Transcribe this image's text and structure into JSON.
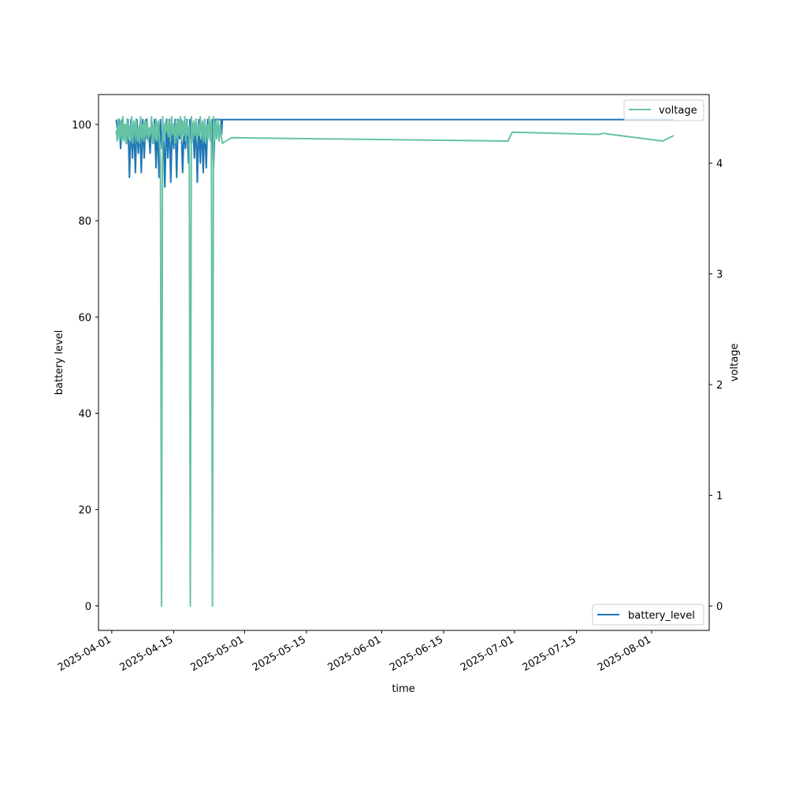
{
  "chart_data": {
    "type": "line",
    "xlabel": "time",
    "ylabel": "battery level",
    "y2label": "voltage",
    "x_ticks": [
      "2025-04-01",
      "2025-04-15",
      "2025-05-01",
      "2025-05-15",
      "2025-06-01",
      "2025-06-15",
      "2025-07-01",
      "2025-07-15",
      "2025-08-01"
    ],
    "xlim": [
      "2025-03-29",
      "2025-08-14"
    ],
    "ylim": [
      -5.1,
      106.2
    ],
    "yticks": [
      0,
      20,
      40,
      60,
      80,
      100
    ],
    "y2lim": [
      -0.22,
      4.62
    ],
    "y2ticks": [
      0,
      1,
      2,
      3,
      4
    ],
    "grid": false,
    "series": [
      {
        "name": "battery_level",
        "axis": "left",
        "color": "#1f77b4",
        "legend_location": "lower-right",
        "x": [
          "2025-04-02T00:00",
          "2025-04-02T08:00",
          "2025-04-02T16:00",
          "2025-04-03T00:00",
          "2025-04-03T08:00",
          "2025-04-03T16:00",
          "2025-04-04T00:00",
          "2025-04-04T08:00",
          "2025-04-04T16:00",
          "2025-04-05T00:00",
          "2025-04-05T08:00",
          "2025-04-05T16:00",
          "2025-04-06T00:00",
          "2025-04-06T08:00",
          "2025-04-06T16:00",
          "2025-04-07T00:00",
          "2025-04-07T08:00",
          "2025-04-07T16:00",
          "2025-04-08T00:00",
          "2025-04-08T08:00",
          "2025-04-08T16:00",
          "2025-04-09T00:00",
          "2025-04-09T08:00",
          "2025-04-09T16:00",
          "2025-04-10T00:00",
          "2025-04-10T08:00",
          "2025-04-10T16:00",
          "2025-04-11T00:00",
          "2025-04-11T08:00",
          "2025-04-11T16:00",
          "2025-04-12T00:00",
          "2025-04-12T08:00",
          "2025-04-12T16:00",
          "2025-04-13T00:00",
          "2025-04-13T08:00",
          "2025-04-13T16:00",
          "2025-04-14T00:00",
          "2025-04-14T08:00",
          "2025-04-14T16:00",
          "2025-04-15T00:00",
          "2025-04-15T08:00",
          "2025-04-15T16:00",
          "2025-04-16T00:00",
          "2025-04-16T08:00",
          "2025-04-16T16:00",
          "2025-04-17T00:00",
          "2025-04-17T08:00",
          "2025-04-17T16:00",
          "2025-04-18T00:00",
          "2025-04-18T08:00",
          "2025-04-18T16:00",
          "2025-04-19T00:00",
          "2025-04-19T08:00",
          "2025-04-19T16:00",
          "2025-04-20T00:00",
          "2025-04-20T08:00",
          "2025-04-20T16:00",
          "2025-04-21T00:00",
          "2025-04-21T08:00",
          "2025-04-21T16:00",
          "2025-04-22T00:00",
          "2025-04-22T08:00",
          "2025-04-22T16:00",
          "2025-04-23T00:00",
          "2025-04-23T08:00",
          "2025-04-23T16:00",
          "2025-04-24T00:00",
          "2025-04-24T08:00",
          "2025-04-24T16:00",
          "2025-04-25T00:00",
          "2025-04-25T08:00",
          "2025-04-25T16:00",
          "2025-04-25T20:00",
          "2025-04-26T00:00",
          "2025-08-06T00:00"
        ],
        "values": [
          101,
          99,
          101,
          95,
          101,
          97,
          100,
          96,
          101,
          89,
          101,
          93,
          100,
          90,
          101,
          94,
          100,
          90,
          101,
          93,
          101,
          97,
          99,
          94,
          101,
          96,
          101,
          91,
          100,
          89,
          101,
          95,
          99,
          87,
          101,
          93,
          101,
          88,
          100,
          95,
          101,
          89,
          101,
          97,
          101,
          90,
          99,
          95,
          101,
          92,
          101,
          96,
          100,
          93,
          101,
          88,
          101,
          92,
          100,
          90,
          101,
          91,
          101,
          101,
          98,
          101,
          91,
          101,
          101,
          101,
          101,
          101,
          98,
          101,
          101
        ]
      },
      {
        "name": "voltage",
        "axis": "right",
        "color": "#66c2a5",
        "legend_location": "upper-right",
        "x": [
          "2025-04-02T00:00",
          "2025-04-02T06:00",
          "2025-04-02T12:00",
          "2025-04-02T18:00",
          "2025-04-03T00:00",
          "2025-04-03T06:00",
          "2025-04-03T12:00",
          "2025-04-03T18:00",
          "2025-04-04T00:00",
          "2025-04-04T06:00",
          "2025-04-04T12:00",
          "2025-04-04T18:00",
          "2025-04-05T00:00",
          "2025-04-05T06:00",
          "2025-04-05T12:00",
          "2025-04-05T18:00",
          "2025-04-06T00:00",
          "2025-04-06T06:00",
          "2025-04-06T12:00",
          "2025-04-06T18:00",
          "2025-04-07T00:00",
          "2025-04-07T06:00",
          "2025-04-07T12:00",
          "2025-04-07T18:00",
          "2025-04-08T00:00",
          "2025-04-08T06:00",
          "2025-04-08T12:00",
          "2025-04-08T18:00",
          "2025-04-09T00:00",
          "2025-04-09T06:00",
          "2025-04-09T12:00",
          "2025-04-09T18:00",
          "2025-04-10T00:00",
          "2025-04-10T06:00",
          "2025-04-10T12:00",
          "2025-04-10T18:00",
          "2025-04-11T00:00",
          "2025-04-11T06:00",
          "2025-04-11T12:00",
          "2025-04-11T18:00",
          "2025-04-12T00:00",
          "2025-04-12T06:00",
          "2025-04-12T12:00",
          "2025-04-12T18:00",
          "2025-04-13T00:00",
          "2025-04-13T06:00",
          "2025-04-13T12:00",
          "2025-04-13T18:00",
          "2025-04-14T00:00",
          "2025-04-14T06:00",
          "2025-04-14T12:00",
          "2025-04-14T18:00",
          "2025-04-15T00:00",
          "2025-04-15T06:00",
          "2025-04-15T12:00",
          "2025-04-15T18:00",
          "2025-04-16T00:00",
          "2025-04-16T06:00",
          "2025-04-16T12:00",
          "2025-04-16T18:00",
          "2025-04-17T00:00",
          "2025-04-17T06:00",
          "2025-04-17T12:00",
          "2025-04-17T18:00",
          "2025-04-18T00:00",
          "2025-04-18T06:00",
          "2025-04-18T12:00",
          "2025-04-18T18:00",
          "2025-04-19T00:00",
          "2025-04-19T06:00",
          "2025-04-19T12:00",
          "2025-04-19T18:00",
          "2025-04-20T00:00",
          "2025-04-20T06:00",
          "2025-04-20T12:00",
          "2025-04-20T18:00",
          "2025-04-21T00:00",
          "2025-04-21T06:00",
          "2025-04-21T12:00",
          "2025-04-21T18:00",
          "2025-04-22T00:00",
          "2025-04-22T06:00",
          "2025-04-22T12:00",
          "2025-04-22T18:00",
          "2025-04-23T00:00",
          "2025-04-23T06:00",
          "2025-04-23T12:00",
          "2025-04-23T18:00",
          "2025-04-24T00:00",
          "2025-04-24T06:00",
          "2025-04-24T12:00",
          "2025-04-24T18:00",
          "2025-04-25T00:00",
          "2025-04-25T06:00",
          "2025-04-25T12:00",
          "2025-04-25T18:00",
          "2025-04-26T00:00",
          "2025-04-28T00:00",
          "2025-06-29T12:00",
          "2025-06-30T12:00",
          "2025-07-20T00:00",
          "2025-07-21T00:00",
          "2025-08-03T12:00",
          "2025-08-06T00:00"
        ],
        "values": [
          4.3,
          4.2,
          4.4,
          4.22,
          4.38,
          4.2,
          4.42,
          4.2,
          4.35,
          4.18,
          4.4,
          4.22,
          4.33,
          4.2,
          4.42,
          4.18,
          4.38,
          4.25,
          4.4,
          4.2,
          4.32,
          4.18,
          4.42,
          4.22,
          4.35,
          4.2,
          4.38,
          4.24,
          4.4,
          4.2,
          4.32,
          4.26,
          4.42,
          4.18,
          4.35,
          4.22,
          4.4,
          4.2,
          4.38,
          4.24,
          4.0,
          0.0,
          4.42,
          4.2,
          4.36,
          4.28,
          4.4,
          4.24,
          4.38,
          4.2,
          4.42,
          4.26,
          4.35,
          4.18,
          4.4,
          4.22,
          4.38,
          4.25,
          4.42,
          4.2,
          4.38,
          4.25,
          4.42,
          4.2,
          4.38,
          4.25,
          4.33,
          0.0,
          4.42,
          4.2,
          4.38,
          4.25,
          4.4,
          4.2,
          4.35,
          4.25,
          4.42,
          4.22,
          4.38,
          4.2,
          4.4,
          4.18,
          4.35,
          4.22,
          4.42,
          4.2,
          4.38,
          0.0,
          4.42,
          4.2,
          4.38,
          4.22,
          4.4,
          4.2,
          4.35,
          4.24,
          4.18,
          4.23,
          4.2,
          4.28,
          4.26,
          4.27,
          4.2,
          4.25
        ]
      }
    ]
  }
}
